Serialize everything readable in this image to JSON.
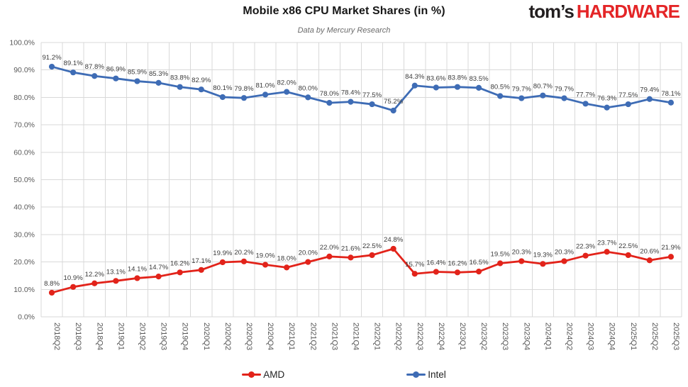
{
  "page": {
    "title": "Mobile x86 CPU Market Shares (in %)",
    "subtitle": "Data by Mercury Research",
    "brand": {
      "prefix": "tom’s",
      "suffix": "HARDWARE",
      "prefix_color": "#231f20",
      "suffix_color": "#e42527"
    }
  },
  "legend": {
    "items": [
      {
        "label": "AMD",
        "color": "#e2231a"
      },
      {
        "label": "Intel",
        "color": "#3e6cb5"
      }
    ]
  },
  "chart_data": {
    "type": "line",
    "title": "Mobile x86 CPU Market Shares (in %)",
    "subtitle": "Data by Mercury Research",
    "categories": [
      "2018Q2",
      "2018Q3",
      "2018Q4",
      "2019Q1",
      "2019Q2",
      "2019Q3",
      "2019Q4",
      "2020Q1",
      "2020Q2",
      "2020Q3",
      "2020Q4",
      "2021Q1",
      "2021Q2",
      "2021Q3",
      "2021Q4",
      "2022Q1",
      "2022Q2",
      "2022Q3",
      "2022Q4",
      "2023Q1",
      "2023Q2",
      "2023Q3",
      "2023Q4",
      "2024Q1",
      "2024Q2",
      "2024Q3",
      "2024Q4",
      "2025Q1",
      "2025Q2",
      "2025Q3"
    ],
    "series": [
      {
        "name": "AMD",
        "color": "#e2231a",
        "values": [
          8.8,
          10.9,
          12.2,
          13.1,
          14.1,
          14.7,
          16.2,
          17.1,
          19.9,
          20.2,
          19.0,
          18.0,
          20.0,
          22.0,
          21.6,
          22.5,
          24.8,
          15.7,
          16.4,
          16.2,
          16.5,
          19.5,
          20.3,
          19.3,
          20.3,
          22.3,
          23.7,
          22.5,
          20.6,
          21.9
        ]
      },
      {
        "name": "Intel",
        "color": "#3e6cb5",
        "values": [
          91.2,
          89.1,
          87.8,
          86.9,
          85.9,
          85.3,
          83.8,
          82.9,
          80.1,
          79.8,
          81.0,
          82.0,
          80.0,
          78.0,
          78.4,
          77.5,
          75.2,
          84.3,
          83.6,
          83.8,
          83.5,
          80.5,
          79.7,
          80.7,
          79.7,
          77.7,
          76.3,
          77.5,
          79.4,
          78.1
        ]
      }
    ],
    "ylim": [
      0,
      100
    ],
    "y_ticks": [
      "0.0%",
      "10.0%",
      "20.0%",
      "30.0%",
      "40.0%",
      "50.0%",
      "60.0%",
      "70.0%",
      "80.0%",
      "90.0%",
      "100.0%"
    ],
    "grid": true,
    "data_labels": true,
    "data_label_suffix": "%",
    "legend_position": "bottom",
    "xlabel": "",
    "ylabel": ""
  },
  "colors": {
    "gridline": "#d9d9d9",
    "axis_label": "#595959",
    "data_label": "#3b3b3b",
    "background": "#ffffff"
  }
}
